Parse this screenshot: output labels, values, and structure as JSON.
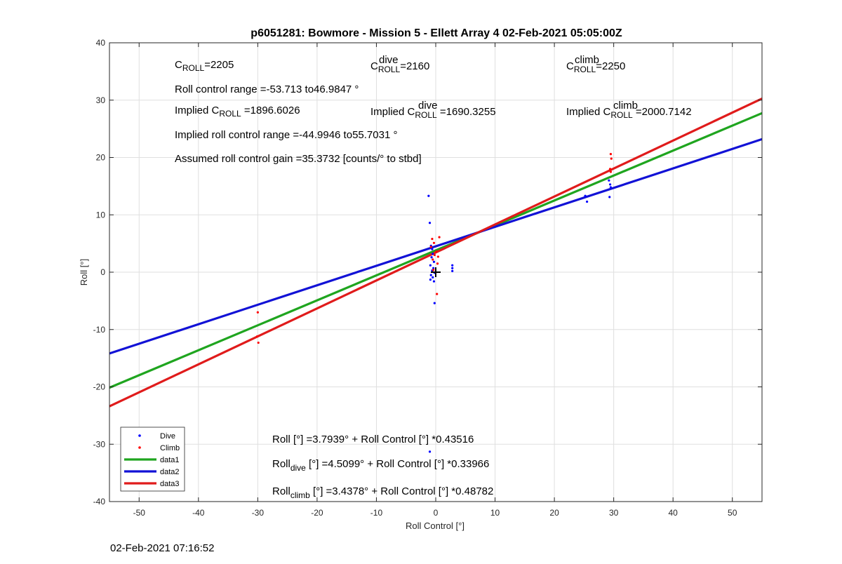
{
  "chart_data": {
    "type": "scatter",
    "title": "p6051281: Bowmore - Mission 5 - Ellett Array 4 02-Feb-2021 05:05:00Z",
    "xlabel": "Roll Control [°]",
    "ylabel": "Roll [°]",
    "xlim": [
      -55,
      55
    ],
    "ylim": [
      -40,
      40
    ],
    "xticks": [
      -50,
      -40,
      -30,
      -20,
      -10,
      0,
      10,
      20,
      30,
      40,
      50
    ],
    "yticks": [
      -40,
      -30,
      -20,
      -10,
      0,
      10,
      20,
      30,
      40
    ],
    "grid": true,
    "legend_position": "bottom-left",
    "series": [
      {
        "name": "Dive",
        "kind": "points",
        "color": "#0000ff",
        "points": [
          [
            -1.2,
            13.3
          ],
          [
            -1,
            8.6
          ],
          [
            -0.8,
            4.6
          ],
          [
            -0.6,
            4.0
          ],
          [
            -0.5,
            3.2
          ],
          [
            -0.7,
            2.6
          ],
          [
            -0.3,
            1.8
          ],
          [
            -0.9,
            1.2
          ],
          [
            -0.4,
            0.7
          ],
          [
            -0.6,
            0.3
          ],
          [
            -0.2,
            -0.1
          ],
          [
            -0.8,
            -0.5
          ],
          [
            -0.5,
            -0.9
          ],
          [
            -0.9,
            -1.3
          ],
          [
            -0.3,
            -1.6
          ],
          [
            -0.2,
            -5.4
          ],
          [
            -1,
            -31.3
          ],
          [
            2.8,
            1.2
          ],
          [
            2.8,
            0.7
          ],
          [
            2.8,
            0.2
          ],
          [
            25.2,
            13.3
          ],
          [
            25.5,
            12.3
          ],
          [
            29.2,
            16.0
          ],
          [
            29.4,
            15.3
          ],
          [
            29.5,
            14.8
          ],
          [
            29.3,
            13.1
          ]
        ]
      },
      {
        "name": "Climb",
        "kind": "points",
        "color": "#ff0000",
        "points": [
          [
            -30,
            -7.0
          ],
          [
            -30.1,
            -11.2
          ],
          [
            -29.9,
            -12.3
          ],
          [
            -0.6,
            5.8
          ],
          [
            -0.3,
            5.1
          ],
          [
            -0.8,
            4.4
          ],
          [
            0.1,
            3.6
          ],
          [
            -0.2,
            3.0
          ],
          [
            0.4,
            2.7
          ],
          [
            -0.5,
            2.2
          ],
          [
            0.6,
            6.1
          ],
          [
            0.3,
            1.5
          ],
          [
            -0.4,
            0.4
          ],
          [
            0.2,
            -3.8
          ],
          [
            29.5,
            20.6
          ],
          [
            29.6,
            19.8
          ],
          [
            29.4,
            18.0
          ],
          [
            29.5,
            17.5
          ]
        ]
      },
      {
        "name": "data1",
        "kind": "line",
        "color": "#1fa51f",
        "intercept": 3.7939,
        "slope": 0.43516
      },
      {
        "name": "data2",
        "kind": "line",
        "color": "#1212d6",
        "intercept": 4.5099,
        "slope": 0.33966
      },
      {
        "name": "data3",
        "kind": "line",
        "color": "#e01b1b",
        "intercept": 3.4378,
        "slope": 0.48782
      }
    ],
    "marker": {
      "x": 0,
      "y": 0,
      "symbol": "+",
      "color": "#000000"
    }
  },
  "annotations": {
    "c_roll": {
      "base": "C",
      "sub": "ROLL",
      "value": "=2205"
    },
    "c_dive": {
      "base": "C",
      "sub": "ROLL",
      "sup": "dive",
      "value": "=2160"
    },
    "c_climb": {
      "base": "C",
      "sub": "ROLL",
      "sup": "climb",
      "value": "=2250"
    },
    "range": "Roll control range =-53.713 to46.9847 °",
    "implied_c_roll": {
      "prefix": "Implied C",
      "sub": "ROLL",
      "value": " =1896.6026"
    },
    "implied_c_dive": {
      "prefix": "Implied C",
      "sub": "ROLL",
      "sup": "dive",
      "value": " =1690.3255"
    },
    "implied_c_climb": {
      "prefix": "Implied C",
      "sub": "ROLL",
      "sup": "climb",
      "value": " =2000.7142"
    },
    "implied_range": "Implied roll control range =-44.9946 to55.7031 °",
    "gain": "Assumed roll control gain =35.3732 [counts/° to stbd]",
    "eq_all": "Roll [°] =3.7939° + Roll Control [°] *0.43516",
    "eq_dive": {
      "base": "Roll",
      "sub": "dive",
      "rest": " [°] =4.5099° + Roll Control [°] *0.33966"
    },
    "eq_climb": {
      "base": "Roll",
      "sub": "climb",
      "rest": " [°] =3.4378° + Roll Control [°] *0.48782"
    }
  },
  "timestamp": "02-Feb-2021 07:16:52"
}
